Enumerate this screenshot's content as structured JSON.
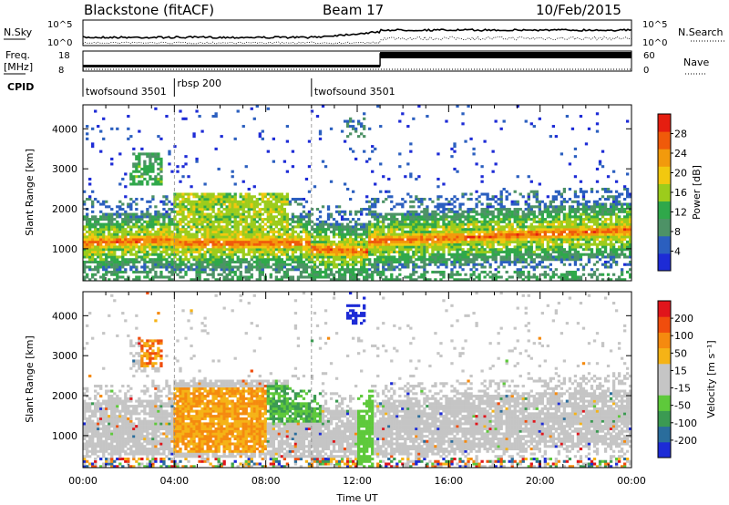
{
  "header": {
    "station": "Blackstone (fitACF)",
    "beam": "Beam 17",
    "date": "10/Feb/2015"
  },
  "top_panels": {
    "nsky_label": "N.Sky",
    "nsearch_label": "N.Search",
    "freq_label_1": "Freq.",
    "freq_label_2": "[MHz]",
    "nave_label": "Nave",
    "cpid_label": "CPID",
    "nsky_ticks": [
      "10^5",
      "10^0"
    ],
    "nsearch_ticks": [
      "10^5",
      "10^0"
    ],
    "freq_ticks": [
      "18",
      "8"
    ],
    "nave_ticks": [
      "60",
      "0"
    ]
  },
  "cpid_segments": [
    {
      "label": "twofsound 3501",
      "start_hour": 0
    },
    {
      "label": "rbsp 200",
      "start_hour": 4
    },
    {
      "label": "twofsound 3501",
      "start_hour": 10
    }
  ],
  "colors": {
    "power": [
      "#1d2bd6",
      "#2b5fbf",
      "#4d9266",
      "#2fa84a",
      "#9ccc1c",
      "#f2c80f",
      "#f29a0c",
      "#f05a0a",
      "#e51e10"
    ],
    "velocity": [
      "#1d2bd6",
      "#2a6d9c",
      "#3b9a52",
      "#5ec93b",
      "#c5c5c5",
      "#c5c5c5",
      "#f5b316",
      "#f58a0f",
      "#f04d0d",
      "#e0151b"
    ]
  },
  "chart_data": [
    {
      "type": "heatmap",
      "title": "",
      "quantity": "Power",
      "ylabel": "Slant Range [km]",
      "xlabel": "",
      "xlim_hours": [
        0,
        24
      ],
      "ylim": [
        200,
        4600
      ],
      "y_ticks": [
        "1000",
        "2000",
        "3000",
        "4000"
      ],
      "x_ticks": [
        "00:00",
        "04:00",
        "08:00",
        "12:00",
        "16:00",
        "20:00",
        "00:00"
      ],
      "colorbar_label": "Power [dB]",
      "colorbar_ticks": [
        "28",
        "24",
        "20",
        "16",
        "12",
        "8",
        "4"
      ],
      "colorbar_range": [
        0,
        30
      ]
    },
    {
      "type": "heatmap",
      "title": "",
      "quantity": "Velocity",
      "ylabel": "Slant Range [km]",
      "xlabel": "Time UT",
      "xlim_hours": [
        0,
        24
      ],
      "ylim": [
        200,
        4600
      ],
      "y_ticks": [
        "1000",
        "2000",
        "3000",
        "4000"
      ],
      "x_ticks": [
        "00:00",
        "04:00",
        "08:00",
        "12:00",
        "16:00",
        "20:00",
        "00:00"
      ],
      "colorbar_label": "Velocity [m s⁻¹]",
      "colorbar_ticks": [
        "200",
        "100",
        "50",
        "15",
        "-15",
        "-50",
        "-100",
        "-200"
      ],
      "colorbar_range": [
        -250,
        250
      ]
    }
  ]
}
